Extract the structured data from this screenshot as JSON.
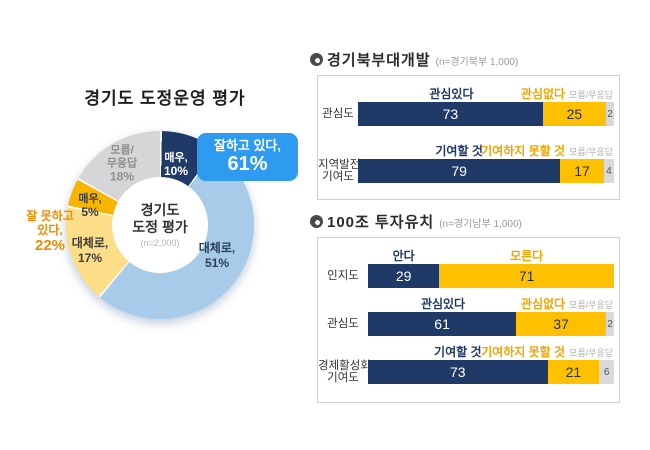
{
  "chart_data": [
    {
      "type": "pie",
      "subtype": "donut",
      "title": "경기도 도정운영 평가",
      "center_label": [
        "경기도",
        "도정 평가"
      ],
      "sample": "(n=2,000)",
      "segments": [
        {
          "label": "매우,",
          "display": "10%",
          "pct": 10,
          "color": "#1f3a67"
        },
        {
          "label": "대체로,",
          "display": "51%",
          "pct": 51,
          "color": "#a9cbea"
        },
        {
          "label": "대체로,",
          "display": "17%",
          "pct": 17,
          "color": "#fcdd88"
        },
        {
          "label": "매우,",
          "display": "5%",
          "pct": 5,
          "color": "#f7b500"
        },
        {
          "label": "모름/",
          "label2": "무응답",
          "display": "18%",
          "pct": 18,
          "color": "#d6d6d8"
        }
      ],
      "callouts": {
        "positive": {
          "label": "잘하고 있다,",
          "display": "61%",
          "color": "#2d9bf0"
        },
        "negative": {
          "label": "잘 못하고",
          "label2": "있다,",
          "display": "22%",
          "color": "#ef8b00"
        }
      }
    },
    {
      "type": "bar",
      "orientation": "horizontal-stacked",
      "title": "경기북부대개발",
      "sample": "(n=경기북부  1,000)",
      "legend_colors": {
        "positive": "#1f3a67",
        "negative": "#ffc000",
        "dontknow": "#d9d9d9"
      },
      "axis_range": [
        0,
        100
      ],
      "rows": [
        {
          "label": "관심도",
          "label2": "",
          "pos_label": "관심있다",
          "neg_label": "관심없다",
          "dk_label": "모름/무응답",
          "pos": 73,
          "neg": 25,
          "dk": 2
        },
        {
          "label": "지역발전",
          "label2": "기여도",
          "pos_label": "기여할 것",
          "neg_label": "기여하지 못할 것",
          "dk_label": "모름/무응답",
          "pos": 79,
          "neg": 17,
          "dk": 4
        }
      ]
    },
    {
      "type": "bar",
      "orientation": "horizontal-stacked",
      "title": "100조 투자유치",
      "sample": "(n=경기남부  1,000)",
      "legend_colors": {
        "positive": "#1f3a67",
        "negative": "#ffc000",
        "dontknow": "#d9d9d9"
      },
      "axis_range": [
        0,
        100
      ],
      "rows": [
        {
          "label": "인지도",
          "label2": "",
          "pos_label": "안다",
          "neg_label": "모른다",
          "dk_label": "",
          "pos": 29,
          "neg": 71,
          "dk": 0
        },
        {
          "label": "관심도",
          "label2": "",
          "pos_label": "관심있다",
          "neg_label": "관심없다",
          "dk_label": "모름/무응답",
          "pos": 61,
          "neg": 37,
          "dk": 2
        },
        {
          "label": "경제활성화",
          "label2": "기여도",
          "pos_label": "기여할 것",
          "neg_label": "기여하지 못할 것",
          "dk_label": "모름/무응답",
          "pos": 73,
          "neg": 21,
          "dk": 6
        }
      ]
    }
  ]
}
